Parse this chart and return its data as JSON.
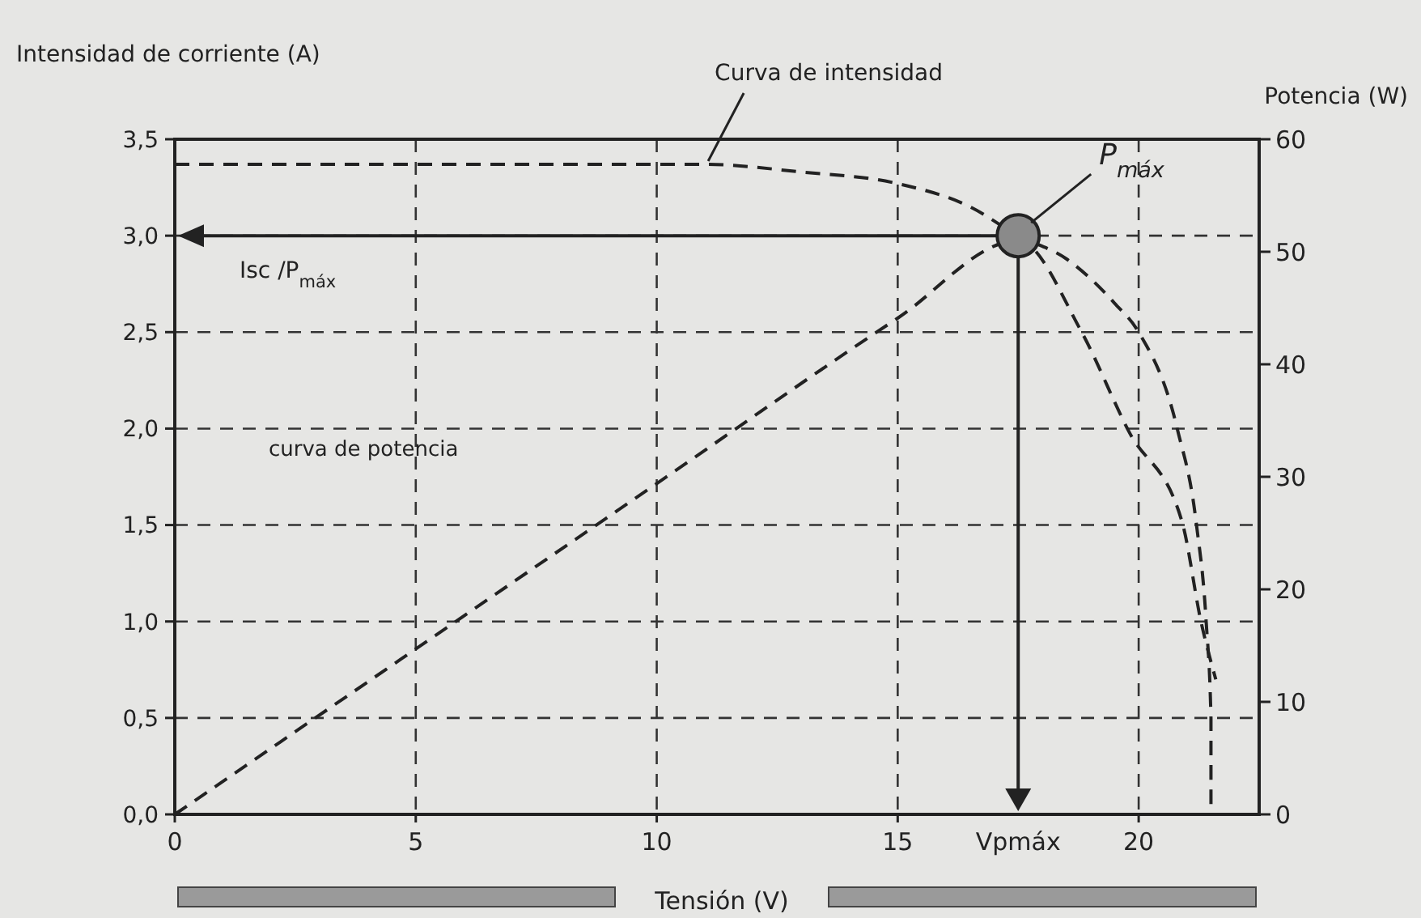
{
  "chart_data": {
    "type": "line",
    "xlabel": "Tensión (V)",
    "ylabel": "Intensidad de corriente (A)",
    "y2label": "Potencia (W)",
    "xlim": [
      0,
      22.5
    ],
    "xticks": [
      0,
      5,
      10,
      15,
      20
    ],
    "ylim": [
      0,
      3.5
    ],
    "yticks": [
      {
        "value": 0,
        "label": "0,0"
      },
      {
        "value": 0.5,
        "label": "0,5"
      },
      {
        "value": 1,
        "label": "1,0"
      },
      {
        "value": 1.5,
        "label": "1,5"
      },
      {
        "value": 2,
        "label": "2,0"
      },
      {
        "value": 2.5,
        "label": "2,5"
      },
      {
        "value": 3,
        "label": "3,0"
      },
      {
        "value": 3.5,
        "label": "3,5"
      }
    ],
    "y2lim": [
      0,
      60
    ],
    "y2ticks": [
      0,
      10,
      20,
      30,
      40,
      50,
      60
    ],
    "grid": true,
    "line_style": "dashed",
    "series": [
      {
        "color": "#222222",
        "x": [
          0,
          5,
          10,
          11,
          13,
          15,
          16.5,
          17.5,
          18.5,
          19.5,
          20,
          20.8,
          21.2,
          21.4,
          21.5,
          21.5
        ],
        "values": [
          3.37,
          3.37,
          3.37,
          3.37,
          3.33,
          3.27,
          3.15,
          3.0,
          2.88,
          2.65,
          2.5,
          2.0,
          1.5,
          1.0,
          0.5,
          0
        ]
      },
      {
        "axis": "y2",
        "color": "#222222",
        "x": [
          0,
          5,
          10,
          15,
          17.5,
          18.8,
          19.8,
          20.9,
          21.3,
          21.6
        ],
        "values": [
          0,
          14.7,
          29.4,
          44.1,
          51,
          43,
          34,
          26,
          17,
          12
        ]
      },
      {
        "type": "scatter",
        "name": "P$_{máx}$",
        "color": "#8a8a8a",
        "marker": "circle",
        "x": [
          17.5
        ],
        "values": [
          3.0
        ]
      }
    ],
    "ref_lines": [
      {
        "axis": "y",
        "value": 3.0,
        "label": "Isc /P$_{máx}$",
        "line_style": "solid"
      },
      {
        "axis": "x",
        "value": 17.5,
        "label": "Vpmáx",
        "line_style": "solid"
      }
    ],
    "annotations": [
      {
        "text": "Curva de intensidad",
        "x": 11,
        "y": 3.37
      },
      "curva de potencia"
    ]
  }
}
